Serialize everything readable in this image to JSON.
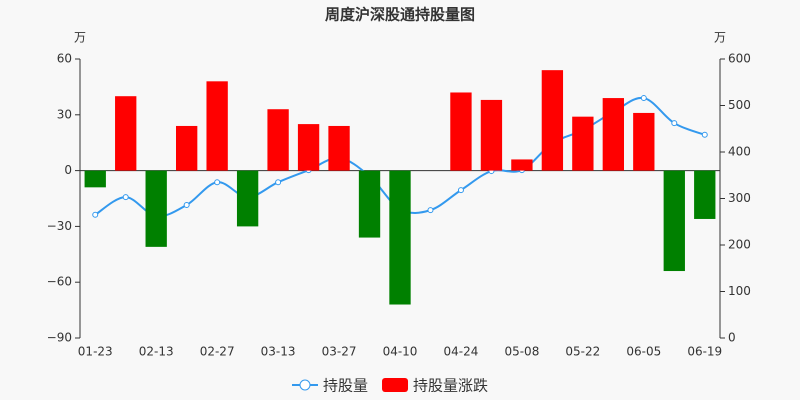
{
  "chart_data": {
    "type": "bar-line",
    "title": "周度沪深股通持股量图",
    "y_unit": "万",
    "y2_unit": "万",
    "categories": [
      "01-23",
      null,
      "02-13",
      null,
      "02-27",
      null,
      "03-13",
      null,
      "03-27",
      null,
      "04-10",
      null,
      "04-24",
      null,
      "05-08",
      null,
      "05-22",
      null,
      "06-05",
      null,
      "06-19"
    ],
    "ylim": [
      -90,
      60
    ],
    "yticks": [
      {
        "value": -90,
        "label": "−90"
      },
      {
        "value": -60,
        "label": "−60"
      },
      {
        "value": -30,
        "label": "−30"
      },
      0,
      30,
      60
    ],
    "y2lim": [
      0,
      600
    ],
    "y2ticks": [
      0,
      100,
      200,
      300,
      400,
      500,
      600
    ],
    "up_color": "#ff0000",
    "down_color": "#008000",
    "series": [
      {
        "name": "持股量",
        "type": "line",
        "axis": "y2",
        "color": "#3399ee",
        "values": [
          265,
          303,
          262,
          286,
          335,
          303,
          335,
          361,
          387,
          348,
          277,
          275,
          318,
          359,
          361,
          419,
          447,
          486,
          516,
          462,
          437
        ]
      },
      {
        "name": "持股量涨跌",
        "type": "bar",
        "color": "#ff0000",
        "values": [
          -9,
          40,
          -41,
          24,
          48,
          -30,
          33,
          25,
          24,
          -36,
          -72,
          0,
          42,
          38,
          6,
          54,
          29,
          39,
          31,
          -54,
          -26
        ]
      }
    ]
  }
}
